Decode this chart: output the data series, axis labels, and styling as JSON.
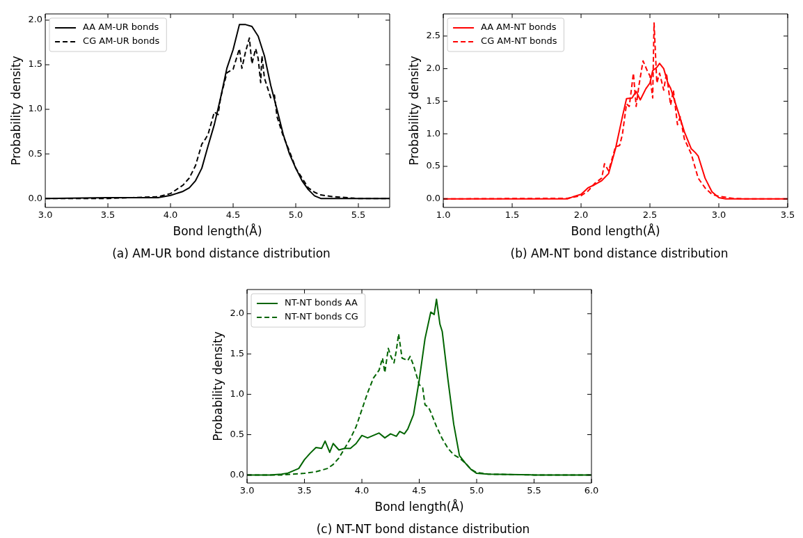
{
  "chart_data": [
    {
      "type": "line",
      "xlabel": "Bond length(Å)",
      "ylabel": "Probability density",
      "annotations": [
        "(a) AM-UR bond distance distribution"
      ],
      "xlim": [
        3.0,
        5.75
      ],
      "ylim": [
        -0.1,
        2.07
      ],
      "xticks": [
        {
          "value": 3,
          "label": "3.0"
        },
        3.5,
        {
          "value": 4,
          "label": "4.0"
        },
        4.5,
        {
          "value": 5,
          "label": "5.0"
        },
        5.5
      ],
      "yticks": [
        {
          "value": 0,
          "label": "0.0"
        },
        0.5,
        {
          "value": 1,
          "label": "1.0"
        },
        1.5,
        {
          "value": 2,
          "label": "2.0"
        }
      ],
      "legend": "top left",
      "series": [
        {
          "name": "AA AM-UR bonds",
          "color": "#000000",
          "line_style": "solid",
          "x": [
            3.0,
            3.5,
            3.9,
            4.0,
            4.1,
            4.15,
            4.2,
            4.25,
            4.3,
            4.35,
            4.4,
            4.45,
            4.5,
            4.55,
            4.6,
            4.65,
            4.7,
            4.75,
            4.8,
            4.85,
            4.9,
            4.95,
            5.0,
            5.05,
            5.1,
            5.15,
            5.2,
            5.75
          ],
          "values": [
            0,
            0.01,
            0.01,
            0.035,
            0.08,
            0.12,
            0.2,
            0.34,
            0.59,
            0.83,
            1.13,
            1.46,
            1.67,
            1.95,
            1.95,
            1.93,
            1.82,
            1.6,
            1.27,
            1.0,
            0.72,
            0.5,
            0.34,
            0.2,
            0.1,
            0.03,
            0,
            0
          ]
        },
        {
          "name": "CG AM-UR bonds",
          "color": "#000000",
          "line_style": "dashed",
          "x": [
            3.0,
            3.5,
            3.7,
            3.9,
            4.0,
            4.1,
            4.15,
            4.2,
            4.25,
            4.28,
            4.3,
            4.35,
            4.38,
            4.4,
            4.45,
            4.5,
            4.55,
            4.57,
            4.6,
            4.63,
            4.65,
            4.68,
            4.7,
            4.72,
            4.73,
            4.75,
            4.8,
            4.83,
            4.85,
            4.9,
            4.95,
            5.0,
            5.05,
            5.1,
            5.15,
            5.2,
            5.3,
            5.5,
            5.75
          ],
          "values": [
            0,
            0,
            0.01,
            0.02,
            0.055,
            0.15,
            0.23,
            0.37,
            0.61,
            0.67,
            0.72,
            0.97,
            0.94,
            1.13,
            1.41,
            1.45,
            1.68,
            1.46,
            1.65,
            1.8,
            1.51,
            1.68,
            1.57,
            1.3,
            1.6,
            1.35,
            1.13,
            1.16,
            0.92,
            0.7,
            0.53,
            0.34,
            0.23,
            0.12,
            0.07,
            0.04,
            0.02,
            0,
            0
          ]
        }
      ]
    },
    {
      "type": "line",
      "xlabel": "Bond length(Å)",
      "ylabel": "Probability density",
      "annotations": [
        "(b) AM-NT bond distance distribution"
      ],
      "xlim": [
        1.0,
        3.5
      ],
      "ylim": [
        -0.13,
        2.84
      ],
      "xticks": [
        {
          "value": 1,
          "label": "1.0"
        },
        1.5,
        {
          "value": 2,
          "label": "2.0"
        },
        2.5,
        {
          "value": 3,
          "label": "3.0"
        },
        3.5
      ],
      "yticks": [
        {
          "value": 0,
          "label": "0.0"
        },
        0.5,
        {
          "value": 1,
          "label": "1.0"
        },
        1.5,
        {
          "value": 2,
          "label": "2.0"
        },
        2.5
      ],
      "legend": "top left",
      "series": [
        {
          "name": "AA AM-NT bonds",
          "color": "#ff0000",
          "line_style": "solid",
          "x": [
            1.0,
            1.9,
            1.95,
            2.0,
            2.05,
            2.1,
            2.15,
            2.2,
            2.25,
            2.3,
            2.33,
            2.37,
            2.4,
            2.43,
            2.47,
            2.5,
            2.52,
            2.55,
            2.57,
            2.6,
            2.63,
            2.65,
            2.7,
            2.75,
            2.8,
            2.83,
            2.85,
            2.9,
            2.95,
            3.0,
            3.05,
            3.5
          ],
          "values": [
            0,
            0,
            0.04,
            0.07,
            0.17,
            0.22,
            0.28,
            0.39,
            0.77,
            1.26,
            1.54,
            1.55,
            1.65,
            1.52,
            1.69,
            1.78,
            1.97,
            2.02,
            2.08,
            2.0,
            1.78,
            1.7,
            1.37,
            1.03,
            0.77,
            0.71,
            0.66,
            0.32,
            0.11,
            0.02,
            0,
            0
          ]
        },
        {
          "name": "CG AM-NT bonds",
          "color": "#ff0000",
          "line_style": "dashed",
          "x": [
            1.0,
            1.9,
            2.0,
            2.05,
            2.1,
            2.15,
            2.17,
            2.2,
            2.25,
            2.28,
            2.3,
            2.33,
            2.35,
            2.38,
            2.4,
            2.42,
            2.45,
            2.48,
            2.5,
            2.52,
            2.53,
            2.55,
            2.57,
            2.6,
            2.62,
            2.65,
            2.67,
            2.7,
            2.72,
            2.75,
            2.8,
            2.85,
            2.9,
            2.95,
            3.0,
            3.1,
            3.2,
            3.5
          ],
          "values": [
            0,
            0.01,
            0.05,
            0.12,
            0.24,
            0.32,
            0.54,
            0.43,
            0.8,
            0.82,
            0.99,
            1.46,
            1.42,
            1.93,
            1.42,
            1.74,
            2.12,
            1.97,
            1.89,
            1.55,
            2.7,
            1.78,
            1.93,
            1.67,
            1.93,
            1.44,
            1.67,
            1.14,
            1.26,
            0.92,
            0.69,
            0.32,
            0.17,
            0.07,
            0.04,
            0.01,
            0,
            0
          ]
        }
      ]
    },
    {
      "type": "line",
      "xlabel": "Bond length(Å)",
      "ylabel": "Probability density",
      "annotations": [
        "(c) NT-NT bond distance distribution"
      ],
      "xlim": [
        3.0,
        6.0
      ],
      "ylim": [
        -0.1,
        2.3
      ],
      "xticks": [
        {
          "value": 3,
          "label": "3.0"
        },
        3.5,
        {
          "value": 4,
          "label": "4.0"
        },
        4.5,
        {
          "value": 5,
          "label": "5.0"
        },
        5.5,
        {
          "value": 6,
          "label": "6.0"
        }
      ],
      "yticks": [
        {
          "value": 0,
          "label": "0.0"
        },
        0.5,
        {
          "value": 1,
          "label": "1.0"
        },
        1.5,
        {
          "value": 2,
          "label": "2.0"
        }
      ],
      "legend": "top left",
      "series": [
        {
          "name": "NT-NT bonds AA",
          "color": "#006400",
          "line_style": "solid",
          "x": [
            3.0,
            3.2,
            3.3,
            3.35,
            3.4,
            3.45,
            3.5,
            3.55,
            3.6,
            3.65,
            3.68,
            3.72,
            3.75,
            3.8,
            3.85,
            3.9,
            3.95,
            4.0,
            4.05,
            4.1,
            4.15,
            4.2,
            4.25,
            4.3,
            4.33,
            4.37,
            4.4,
            4.45,
            4.5,
            4.55,
            4.6,
            4.63,
            4.65,
            4.68,
            4.7,
            4.75,
            4.8,
            4.85,
            4.9,
            4.95,
            5.0,
            5.1,
            5.5,
            6.0
          ],
          "values": [
            0,
            0,
            0.01,
            0.02,
            0.05,
            0.08,
            0.19,
            0.27,
            0.34,
            0.33,
            0.42,
            0.28,
            0.39,
            0.31,
            0.33,
            0.33,
            0.39,
            0.49,
            0.46,
            0.49,
            0.52,
            0.46,
            0.51,
            0.48,
            0.54,
            0.51,
            0.57,
            0.75,
            1.18,
            1.69,
            2.02,
            1.99,
            2.18,
            1.87,
            1.78,
            1.18,
            0.63,
            0.24,
            0.15,
            0.07,
            0.02,
            0.01,
            0,
            0
          ]
        },
        {
          "name": "NT-NT bonds CG",
          "color": "#006400",
          "line_style": "dashed",
          "x": [
            3.0,
            3.3,
            3.4,
            3.5,
            3.6,
            3.7,
            3.75,
            3.8,
            3.85,
            3.9,
            3.95,
            4.0,
            4.05,
            4.1,
            4.15,
            4.18,
            4.2,
            4.23,
            4.25,
            4.28,
            4.3,
            4.32,
            4.35,
            4.4,
            4.42,
            4.45,
            4.5,
            4.53,
            4.55,
            4.58,
            4.6,
            4.65,
            4.7,
            4.75,
            4.8,
            4.85,
            4.9,
            4.95,
            5.0,
            5.1,
            5.5,
            6.0
          ],
          "values": [
            0,
            0,
            0.01,
            0.02,
            0.04,
            0.08,
            0.13,
            0.21,
            0.33,
            0.45,
            0.6,
            0.81,
            1.02,
            1.2,
            1.3,
            1.45,
            1.27,
            1.57,
            1.48,
            1.39,
            1.54,
            1.75,
            1.45,
            1.42,
            1.47,
            1.36,
            1.12,
            1.08,
            0.87,
            0.84,
            0.78,
            0.6,
            0.45,
            0.33,
            0.25,
            0.21,
            0.15,
            0.07,
            0.03,
            0.01,
            0,
            0
          ]
        }
      ]
    }
  ]
}
